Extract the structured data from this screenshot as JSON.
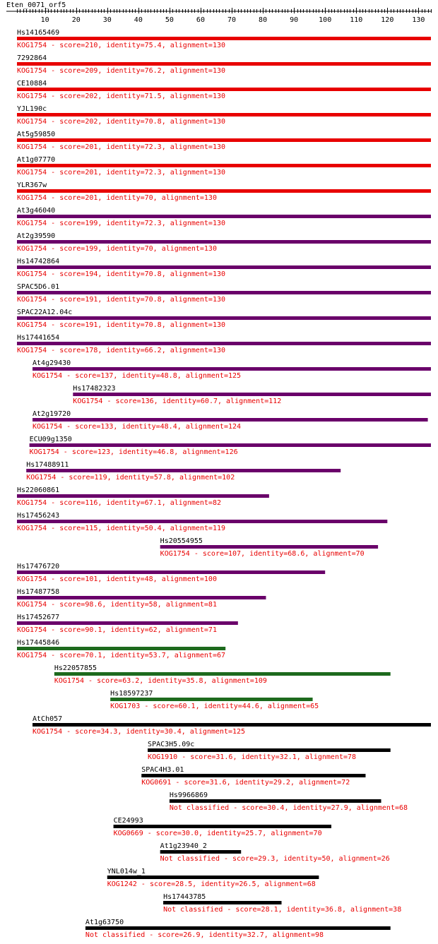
{
  "query": {
    "name": "Eten_0071_orf5",
    "length": 134,
    "tick_labels": [
      "10",
      "20",
      "30",
      "40",
      "50",
      "60",
      "70",
      "80",
      "90",
      "100",
      "110",
      "120",
      "130"
    ]
  },
  "colors": {
    "red": "#e80000",
    "purple": "#6a006a",
    "green": "#1d6a1d",
    "black": "#000000",
    "text": "#000000",
    "description": "#e80000"
  },
  "hits": [
    {
      "name": "Hs14165469",
      "description": "KOG1754 - score=210, identity=75.4, alignment=130",
      "start": 1,
      "end": 134,
      "color": "red"
    },
    {
      "name": "7292864",
      "description": "KOG1754 - score=209, identity=76.2, alignment=130",
      "start": 1,
      "end": 134,
      "color": "red"
    },
    {
      "name": "CE10884",
      "description": "KOG1754 - score=202, identity=71.5, alignment=130",
      "start": 1,
      "end": 134,
      "color": "red"
    },
    {
      "name": "YJL190c",
      "description": "KOG1754 - score=202, identity=70.8, alignment=130",
      "start": 1,
      "end": 134,
      "color": "red"
    },
    {
      "name": "At5g59850",
      "description": "KOG1754 - score=201, identity=72.3, alignment=130",
      "start": 1,
      "end": 134,
      "color": "red"
    },
    {
      "name": "At1g07770",
      "description": "KOG1754 - score=201, identity=72.3, alignment=130",
      "start": 1,
      "end": 134,
      "color": "red"
    },
    {
      "name": "YLR367w",
      "description": "KOG1754 - score=201, identity=70, alignment=130",
      "start": 1,
      "end": 134,
      "color": "red"
    },
    {
      "name": "At3g46040",
      "description": "KOG1754 - score=199, identity=72.3, alignment=130",
      "start": 1,
      "end": 134,
      "color": "purple"
    },
    {
      "name": "At2g39590",
      "description": "KOG1754 - score=199, identity=70, alignment=130",
      "start": 1,
      "end": 134,
      "color": "purple"
    },
    {
      "name": "Hs14742864",
      "description": "KOG1754 - score=194, identity=70.8, alignment=130",
      "start": 1,
      "end": 134,
      "color": "purple"
    },
    {
      "name": "SPAC5D6.01",
      "description": "KOG1754 - score=191, identity=70.8, alignment=130",
      "start": 1,
      "end": 134,
      "color": "purple"
    },
    {
      "name": "SPAC22A12.04c",
      "description": "KOG1754 - score=191, identity=70.8, alignment=130",
      "start": 1,
      "end": 134,
      "color": "purple"
    },
    {
      "name": "Hs17441654",
      "description": "KOG1754 - score=178, identity=66.2, alignment=130",
      "start": 1,
      "end": 134,
      "color": "purple"
    },
    {
      "name": "At4g29430",
      "description": "KOG1754 - score=137, identity=48.8, alignment=125",
      "start": 6,
      "end": 134,
      "color": "purple"
    },
    {
      "name": "Hs17482323",
      "description": "KOG1754 - score=136, identity=60.7, alignment=112",
      "start": 19,
      "end": 134,
      "color": "purple"
    },
    {
      "name": "At2g19720",
      "description": "KOG1754 - score=133, identity=48.4, alignment=124",
      "start": 6,
      "end": 133,
      "color": "purple"
    },
    {
      "name": "ECU09g1350",
      "description": "KOG1754 - score=123, identity=46.8, alignment=126",
      "start": 5,
      "end": 134,
      "color": "purple"
    },
    {
      "name": "Hs17488911",
      "description": "KOG1754 - score=119, identity=57.8, alignment=102",
      "start": 4,
      "end": 105,
      "color": "purple"
    },
    {
      "name": "Hs22060861",
      "description": "KOG1754 - score=116, identity=67.1, alignment=82",
      "start": 1,
      "end": 82,
      "color": "purple"
    },
    {
      "name": "Hs17456243",
      "description": "KOG1754 - score=115, identity=50.4, alignment=119",
      "start": 1,
      "end": 120,
      "color": "purple"
    },
    {
      "name": "Hs20554955",
      "description": "KOG1754 - score=107, identity=68.6, alignment=70",
      "start": 47,
      "end": 117,
      "color": "purple"
    },
    {
      "name": "Hs17476720",
      "description": "KOG1754 - score=101, identity=48, alignment=100",
      "start": 1,
      "end": 100,
      "color": "purple"
    },
    {
      "name": "Hs17487758",
      "description": "KOG1754 - score=98.6, identity=58, alignment=81",
      "start": 1,
      "end": 81,
      "color": "purple"
    },
    {
      "name": "Hs17452677",
      "description": "KOG1754 - score=90.1, identity=62, alignment=71",
      "start": 1,
      "end": 72,
      "color": "purple"
    },
    {
      "name": "Hs17445846",
      "description": "KOG1754 - score=70.1, identity=53.7, alignment=67",
      "start": 1,
      "end": 68,
      "color": "green"
    },
    {
      "name": "Hs22057855",
      "description": "KOG1754 - score=63.2, identity=35.8, alignment=109",
      "start": 13,
      "end": 121,
      "color": "green"
    },
    {
      "name": "Hs18597237",
      "description": "KOG1703 - score=60.1, identity=44.6, alignment=65",
      "start": 31,
      "end": 96,
      "color": "green"
    },
    {
      "name": "AtCh057",
      "description": "KOG1754 - score=34.3, identity=30.4, alignment=125",
      "start": 6,
      "end": 134,
      "color": "black"
    },
    {
      "name": "SPAC3H5.09c",
      "description": "KOG1910 - score=31.6, identity=32.1, alignment=78",
      "start": 43,
      "end": 121,
      "color": "black"
    },
    {
      "name": "SPAC4H3.01",
      "description": "KOG0691 - score=31.6, identity=29.2, alignment=72",
      "start": 41,
      "end": 113,
      "color": "black"
    },
    {
      "name": "Hs9966869",
      "description": "Not classified - score=30.4, identity=27.9, alignment=68",
      "start": 50,
      "end": 118,
      "color": "black"
    },
    {
      "name": "CE24993",
      "description": "KOG0669 - score=30.0, identity=25.7, alignment=70",
      "start": 32,
      "end": 102,
      "color": "black"
    },
    {
      "name": "At1g23940_2",
      "description": "Not classified - score=29.3, identity=50, alignment=26",
      "start": 47,
      "end": 73,
      "color": "black"
    },
    {
      "name": "YNL014w_1",
      "description": "KOG1242 - score=28.5, identity=26.5, alignment=68",
      "start": 30,
      "end": 98,
      "color": "black"
    },
    {
      "name": "Hs17443785",
      "description": "Not classified - score=28.1, identity=36.8, alignment=38",
      "start": 48,
      "end": 86,
      "color": "black"
    },
    {
      "name": "At1g63750",
      "description": "Not classified - score=26.9, identity=32.7, alignment=98",
      "start": 23,
      "end": 121,
      "color": "black"
    }
  ]
}
